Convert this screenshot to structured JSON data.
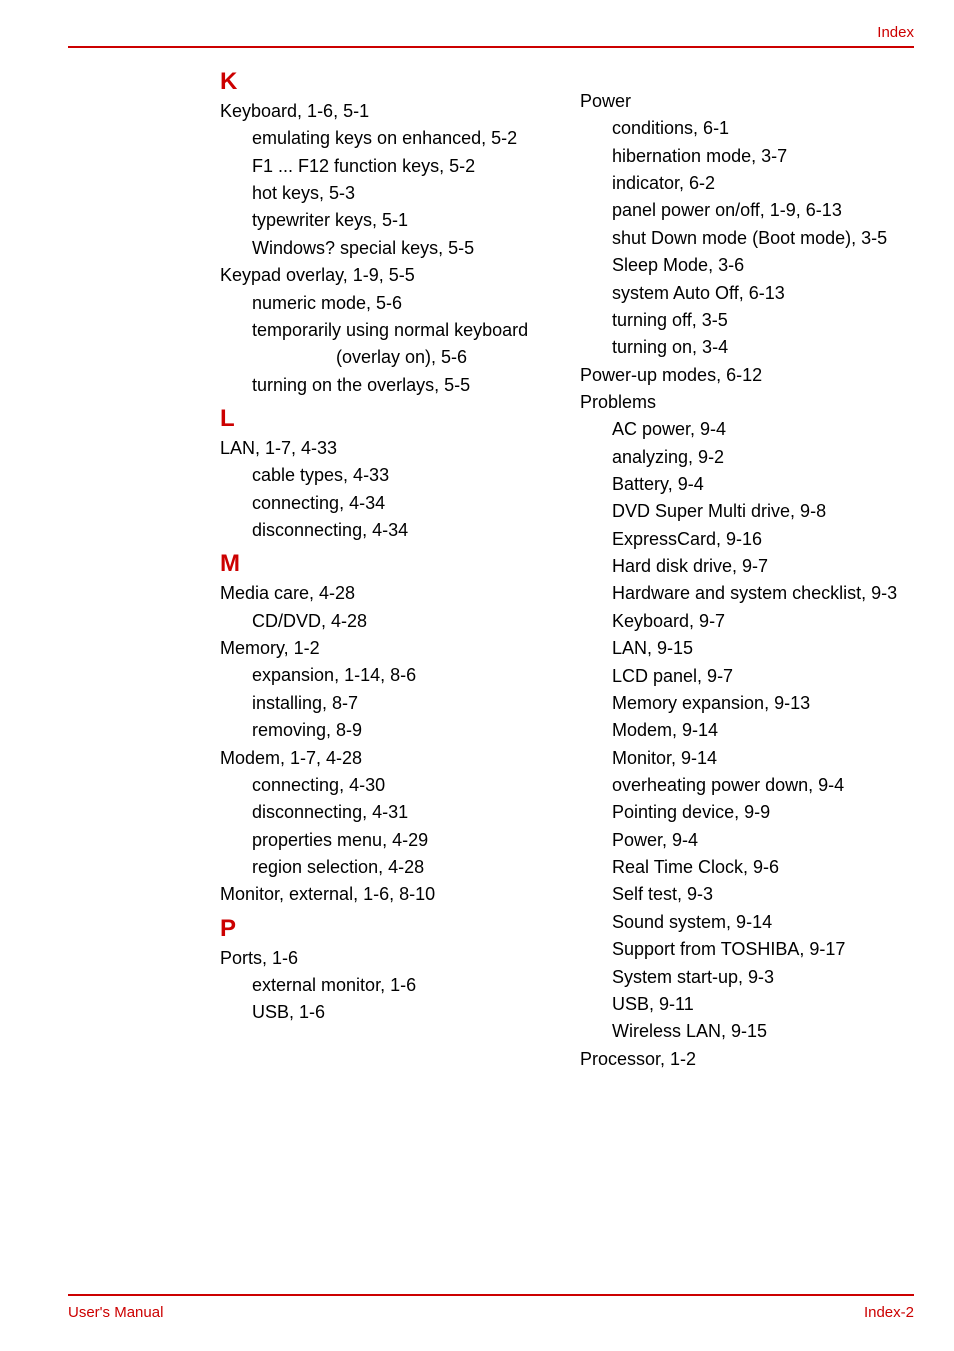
{
  "colors": {
    "accent": "#cc0000",
    "text": "#000000",
    "background": "#ffffff"
  },
  "typography": {
    "body_font": "Arial, Helvetica, sans-serif",
    "body_size_pt": 14,
    "letter_size_pt": 18,
    "footer_size_pt": 11
  },
  "header": {
    "right": "Index"
  },
  "footer": {
    "left": "User's Manual",
    "right": "Index-2"
  },
  "col1": {
    "K": {
      "letter": "K",
      "lines": [
        {
          "lvl": 0,
          "t": "Keyboard, 1-6, 5-1"
        },
        {
          "lvl": 1,
          "wrap": true,
          "t": "emulating keys on enhanced, 5-2"
        },
        {
          "lvl": 1,
          "t": "F1 ... F12 function keys, 5-2"
        },
        {
          "lvl": 1,
          "t": "hot keys, 5-3"
        },
        {
          "lvl": 1,
          "t": "typewriter keys, 5-1"
        },
        {
          "lvl": 1,
          "t": "Windows? special keys, 5-5"
        },
        {
          "lvl": 0,
          "t": "Keypad overlay, 1-9, 5-5"
        },
        {
          "lvl": 1,
          "t": "numeric mode, 5-6"
        },
        {
          "lvl": 1,
          "wrap": true,
          "t": "temporarily using normal keyboard (overlay on), 5-6"
        },
        {
          "lvl": 1,
          "t": "turning on the overlays, 5-5"
        }
      ]
    },
    "L": {
      "letter": "L",
      "lines": [
        {
          "lvl": 0,
          "t": "LAN, 1-7, 4-33"
        },
        {
          "lvl": 1,
          "t": "cable types, 4-33"
        },
        {
          "lvl": 1,
          "t": "connecting, 4-34"
        },
        {
          "lvl": 1,
          "t": "disconnecting, 4-34"
        }
      ]
    },
    "M": {
      "letter": "M",
      "lines": [
        {
          "lvl": 0,
          "t": "Media care, 4-28"
        },
        {
          "lvl": 1,
          "t": "CD/DVD, 4-28"
        },
        {
          "lvl": 0,
          "t": "Memory, 1-2"
        },
        {
          "lvl": 1,
          "t": "expansion, 1-14, 8-6"
        },
        {
          "lvl": 1,
          "t": "installing, 8-7"
        },
        {
          "lvl": 1,
          "t": "removing, 8-9"
        },
        {
          "lvl": 0,
          "t": "Modem, 1-7, 4-28"
        },
        {
          "lvl": 1,
          "t": "connecting, 4-30"
        },
        {
          "lvl": 1,
          "t": "disconnecting, 4-31"
        },
        {
          "lvl": 1,
          "t": "properties menu, 4-29"
        },
        {
          "lvl": 1,
          "t": "region selection, 4-28"
        },
        {
          "lvl": 0,
          "t": "Monitor, external, 1-6, 8-10"
        }
      ]
    },
    "P": {
      "letter": "P",
      "lines": [
        {
          "lvl": 0,
          "t": "Ports, 1-6"
        },
        {
          "lvl": 1,
          "t": "external monitor, 1-6"
        },
        {
          "lvl": 1,
          "t": "USB, 1-6"
        }
      ]
    }
  },
  "col2": {
    "Pcont": {
      "lines": [
        {
          "lvl": 0,
          "t": "Power"
        },
        {
          "lvl": 1,
          "t": "conditions, 6-1"
        },
        {
          "lvl": 1,
          "t": "hibernation mode, 3-7"
        },
        {
          "lvl": 1,
          "t": "indicator, 6-2"
        },
        {
          "lvl": 1,
          "wrap": true,
          "t": "panel power on/off, 1-9, 6-13"
        },
        {
          "lvl": 1,
          "wrap": true,
          "t": "shut Down mode (Boot mode), 3-5"
        },
        {
          "lvl": 1,
          "t": "Sleep Mode, 3-6"
        },
        {
          "lvl": 1,
          "t": "system Auto Off, 6-13"
        },
        {
          "lvl": 1,
          "t": "turning off, 3-5"
        },
        {
          "lvl": 1,
          "t": "turning on, 3-4"
        },
        {
          "lvl": 0,
          "t": "Power-up modes, 6-12"
        },
        {
          "lvl": 0,
          "t": "Problems"
        },
        {
          "lvl": 1,
          "t": "AC power, 9-4"
        },
        {
          "lvl": 1,
          "t": "analyzing, 9-2"
        },
        {
          "lvl": 1,
          "t": "Battery, 9-4"
        },
        {
          "lvl": 1,
          "t": "DVD Super Multi drive, 9-8"
        },
        {
          "lvl": 1,
          "t": "ExpressCard, 9-16"
        },
        {
          "lvl": 1,
          "t": "Hard disk drive, 9-7"
        },
        {
          "lvl": 1,
          "wrap": true,
          "t": "Hardware and system checklist, 9-3"
        },
        {
          "lvl": 1,
          "t": "Keyboard, 9-7"
        },
        {
          "lvl": 1,
          "t": "LAN, 9-15"
        },
        {
          "lvl": 1,
          "t": "LCD panel, 9-7"
        },
        {
          "lvl": 1,
          "t": "Memory expansion, 9-13"
        },
        {
          "lvl": 1,
          "t": "Modem, 9-14"
        },
        {
          "lvl": 1,
          "t": "Monitor, 9-14"
        },
        {
          "lvl": 1,
          "wrap": true,
          "t": "overheating power down, 9-4"
        },
        {
          "lvl": 1,
          "t": "Pointing device, 9-9"
        },
        {
          "lvl": 1,
          "t": "Power, 9-4"
        },
        {
          "lvl": 1,
          "t": "Real Time Clock, 9-6"
        },
        {
          "lvl": 1,
          "t": "Self test, 9-3"
        },
        {
          "lvl": 1,
          "t": "Sound system, 9-14"
        },
        {
          "lvl": 1,
          "wrap": true,
          "t": "Support from TOSHIBA, 9-17"
        },
        {
          "lvl": 1,
          "t": "System start-up, 9-3"
        },
        {
          "lvl": 1,
          "t": "USB, 9-11"
        },
        {
          "lvl": 1,
          "t": "Wireless LAN, 9-15"
        },
        {
          "lvl": 0,
          "t": "Processor, 1-2"
        }
      ]
    }
  }
}
